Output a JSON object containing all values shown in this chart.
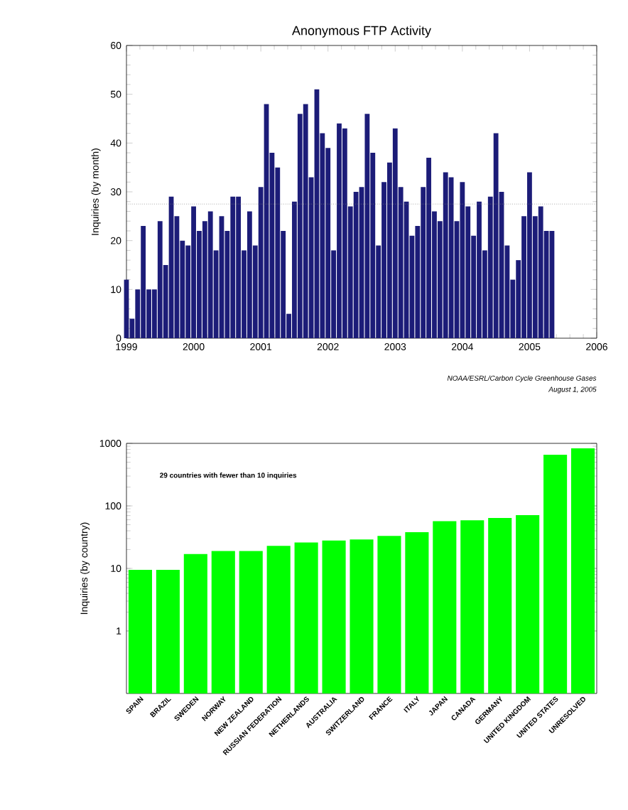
{
  "chart_data": [
    {
      "type": "bar",
      "title": "Anonymous FTP Activity",
      "ylabel": "Inquiries (by month)",
      "x": [
        "1999-01",
        "1999-02",
        "1999-03",
        "1999-04",
        "1999-05",
        "1999-06",
        "1999-07",
        "1999-08",
        "1999-09",
        "1999-10",
        "1999-11",
        "1999-12",
        "2000-01",
        "2000-02",
        "2000-03",
        "2000-04",
        "2000-05",
        "2000-06",
        "2000-07",
        "2000-08",
        "2000-09",
        "2000-10",
        "2000-11",
        "2000-12",
        "2001-01",
        "2001-02",
        "2001-03",
        "2001-04",
        "2001-05",
        "2001-06",
        "2001-07",
        "2001-08",
        "2001-09",
        "2001-10",
        "2001-11",
        "2001-12",
        "2002-01",
        "2002-02",
        "2002-03",
        "2002-04",
        "2002-05",
        "2002-06",
        "2002-07",
        "2002-08",
        "2002-09",
        "2002-10",
        "2002-11",
        "2002-12",
        "2003-01",
        "2003-02",
        "2003-03",
        "2003-04",
        "2003-05",
        "2003-06",
        "2003-07",
        "2003-08",
        "2003-09",
        "2003-10",
        "2003-11",
        "2003-12",
        "2004-01",
        "2004-02",
        "2004-03",
        "2004-04",
        "2004-05",
        "2004-06",
        "2004-07",
        "2004-08",
        "2004-09",
        "2004-10",
        "2004-11",
        "2004-12",
        "2005-01",
        "2005-02",
        "2005-03",
        "2005-04",
        "2005-05"
      ],
      "values": [
        12,
        4,
        10,
        23,
        10,
        10,
        24,
        15,
        29,
        25,
        20,
        19,
        27,
        22,
        24,
        26,
        18,
        25,
        22,
        29,
        29,
        18,
        26,
        19,
        31,
        48,
        38,
        35,
        22,
        5,
        28,
        46,
        48,
        33,
        51,
        42,
        39,
        18,
        44,
        43,
        27,
        30,
        31,
        46,
        38,
        19,
        32,
        36,
        43,
        31,
        28,
        21,
        23,
        31,
        37,
        26,
        24,
        34,
        33,
        24,
        32,
        27,
        21,
        28,
        18,
        29,
        42,
        30,
        19,
        12,
        16,
        25,
        34,
        25,
        27,
        22,
        22
      ],
      "color": "#1c1c78",
      "xlim": [
        "1999",
        "2006"
      ],
      "ylim": [
        0,
        60
      ],
      "xticks": [
        "1999",
        "2000",
        "2001",
        "2002",
        "2003",
        "2004",
        "2005",
        "2006"
      ],
      "yticks": [
        0,
        10,
        20,
        30,
        40,
        50,
        60
      ],
      "ref_lines": [
        {
          "axis": "y",
          "value": 27.5,
          "line_style": "dotted",
          "color": "#808080"
        }
      ],
      "annotations": [
        "NOAA/ESRL/Carbon Cycle Greenhouse Gases",
        "August 1, 2005"
      ]
    },
    {
      "type": "bar",
      "ylabel": "Inquiries (by country)",
      "log": "y",
      "categories": [
        "SPAIN",
        "BRAZIL",
        "SWEDEN",
        "NORWAY",
        "NEW ZEALAND",
        "RUSSIAN FEDERATION",
        "NETHERLANDS",
        "AUSTRALIA",
        "SWITZERLAND",
        "FRANCE",
        "ITALY",
        "JAPAN",
        "CANADA",
        "GERMANY",
        "UNITED KINGDOM",
        "UNITED STATES",
        "UNRESOLVED"
      ],
      "values": [
        9.5,
        9.5,
        17,
        19,
        19,
        23,
        26,
        28,
        29,
        33,
        38,
        57,
        59,
        64,
        71,
        660,
        830
      ],
      "color": "#00ff00",
      "ylim": [
        0.1,
        1000
      ],
      "yticks": [
        1,
        10,
        100,
        1000
      ],
      "annotations": [
        "29 countries with fewer than 10 inquiries"
      ]
    }
  ]
}
